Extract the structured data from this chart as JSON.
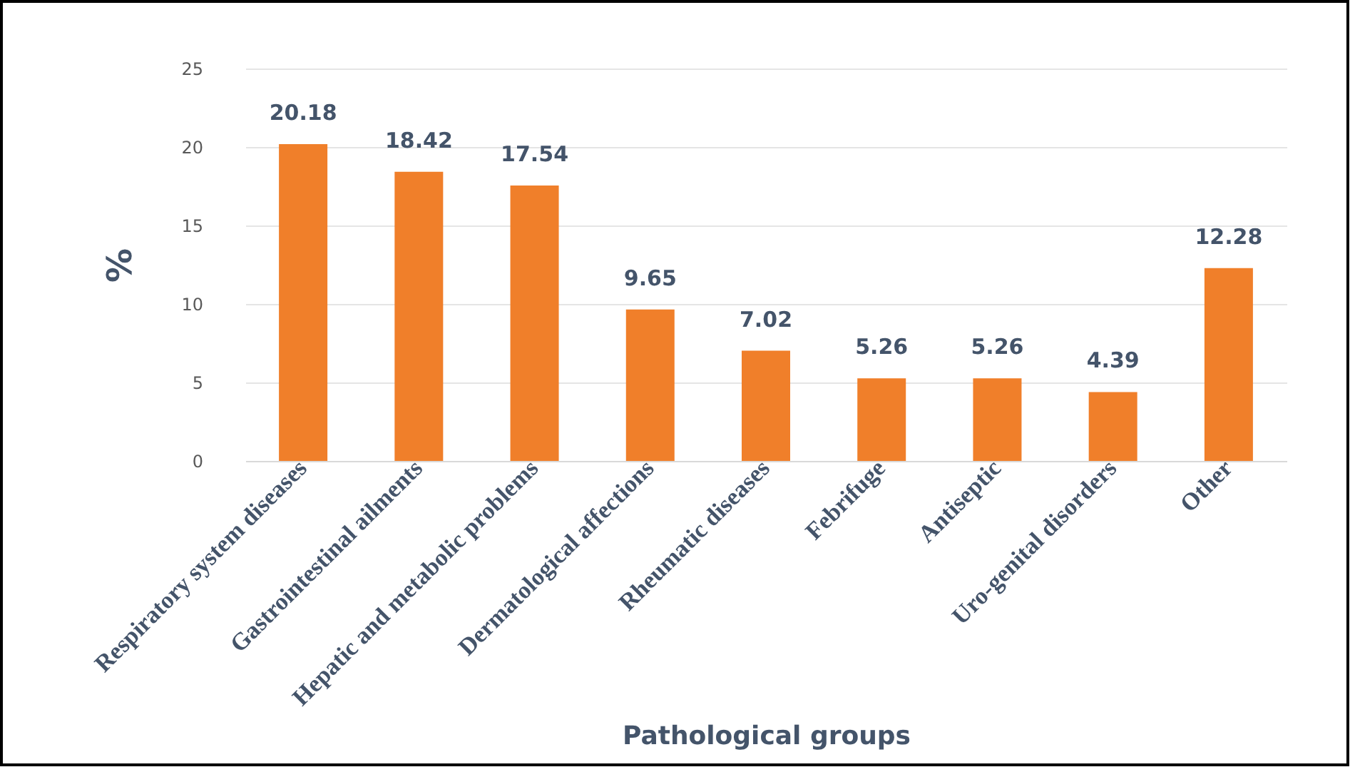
{
  "chart_data": {
    "type": "bar",
    "xlabel": "Pathological groups",
    "ylabel": "%",
    "categories": [
      "Respiratory system diseases",
      "Gastrointestinal ailments",
      "Hepatic and metabolic problems",
      "Dermatological affections",
      "Rheumatic diseases",
      "Febrifuge",
      "Antiseptic",
      "Uro-genital disorders",
      "Other"
    ],
    "values": [
      20.18,
      18.42,
      17.54,
      9.65,
      7.02,
      5.26,
      5.26,
      4.39,
      12.28
    ],
    "color": "#f07f2a",
    "ylim": [
      0,
      25
    ],
    "yticks": [
      0,
      5,
      10,
      15,
      20,
      25
    ],
    "grid": "y",
    "data_labels": true
  }
}
